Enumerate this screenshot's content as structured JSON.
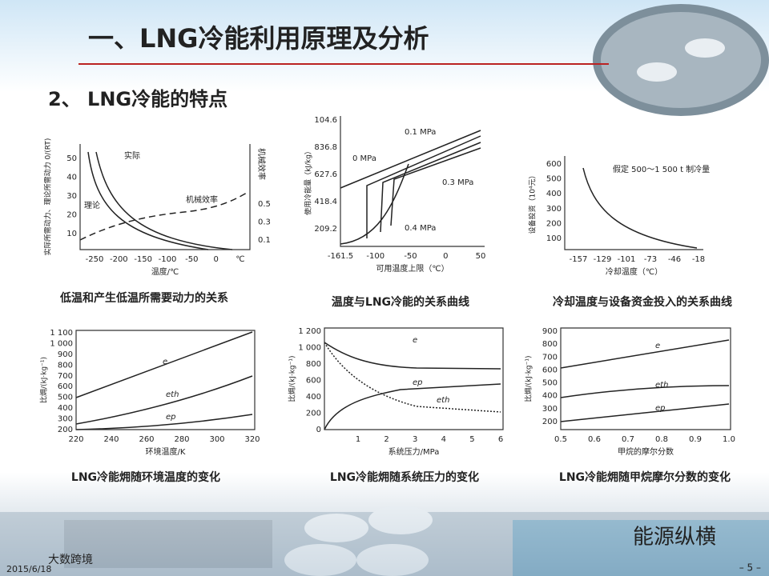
{
  "header": {
    "title": "一、LNG冷能利用原理及分析",
    "subtitle": "2、 LNG冷能的特点"
  },
  "figures": [
    {
      "caption": "低温和产生低温所需要动力的关系",
      "xlabel": "温度/℃",
      "ylabel": "实际所需动力、理论所需动力 0/(RT)",
      "y2label": "机械效率",
      "xticks": [
        "-250",
        "-200",
        "-150",
        "-100",
        "-50",
        "0",
        "℃"
      ],
      "yticks": [
        "50",
        "40",
        "30",
        "20",
        "10"
      ],
      "y2ticks": [
        "0.5",
        "0.3",
        "0.1"
      ],
      "labels": [
        "实际",
        "理论",
        "机械效率"
      ]
    },
    {
      "caption": "温度与LNG冷能的关系曲线",
      "xlabel": "可用温度上限（℃）",
      "ylabel": "使用冷能量（kJ/kg）",
      "xticks": [
        "-161.5",
        "-100",
        "-50",
        "0",
        "50"
      ],
      "yticks": [
        "104.6",
        "836.8",
        "627.6",
        "418.4",
        "209.2"
      ],
      "labels": [
        "0.1 MPa",
        "0 MPa",
        "0.3 MPa",
        "0.4 MPa"
      ]
    },
    {
      "caption": "冷却温度与设备资金投入的关系曲线",
      "xlabel": "冷却温度（℃）",
      "ylabel": "设备投资（10⁴元）",
      "xticks": [
        "-157",
        "-129",
        "-101",
        "-73",
        "-46",
        "-18"
      ],
      "yticks": [
        "600",
        "500",
        "400",
        "300",
        "200",
        "100"
      ],
      "labels": [
        "假定 500～1 500 t 制冷量"
      ]
    },
    {
      "caption": "LNG冷能㶲随环境温度的变化",
      "xlabel": "环境温度/K",
      "ylabel": "比㶲/(kJ·kg⁻¹)",
      "xticks": [
        "220",
        "240",
        "260",
        "280",
        "300",
        "320"
      ],
      "yticks": [
        "1 100",
        "1 000",
        "900",
        "800",
        "700",
        "600",
        "500",
        "400",
        "300",
        "200"
      ],
      "labels": [
        "e",
        "eth",
        "ep"
      ]
    },
    {
      "caption": "LNG冷能㶲随系统压力的变化",
      "xlabel": "系统压力/MPa",
      "ylabel": "比㶲/(kJ·kg⁻¹)",
      "xticks": [
        "1",
        "2",
        "3",
        "4",
        "5",
        "6"
      ],
      "yticks": [
        "1 200",
        "1 000",
        "800",
        "600",
        "400",
        "200",
        "0"
      ],
      "labels": [
        "e",
        "ep",
        "eth"
      ]
    },
    {
      "caption": "LNG冷能㶲随甲烷摩尔分数的变化",
      "xlabel": "甲烷的摩尔分数",
      "ylabel": "比㶲/(kJ·kg⁻¹)",
      "xticks": [
        "0.5",
        "0.6",
        "0.7",
        "0.8",
        "0.9",
        "1.0"
      ],
      "yticks": [
        "900",
        "800",
        "700",
        "600",
        "500",
        "400",
        "300",
        "200"
      ],
      "labels": [
        "e",
        "eth",
        "ep"
      ]
    }
  ],
  "footer": {
    "date": "2015/6/18",
    "page": "– 5 –",
    "watermark": "能源纵横",
    "logo": "大数跨境"
  }
}
